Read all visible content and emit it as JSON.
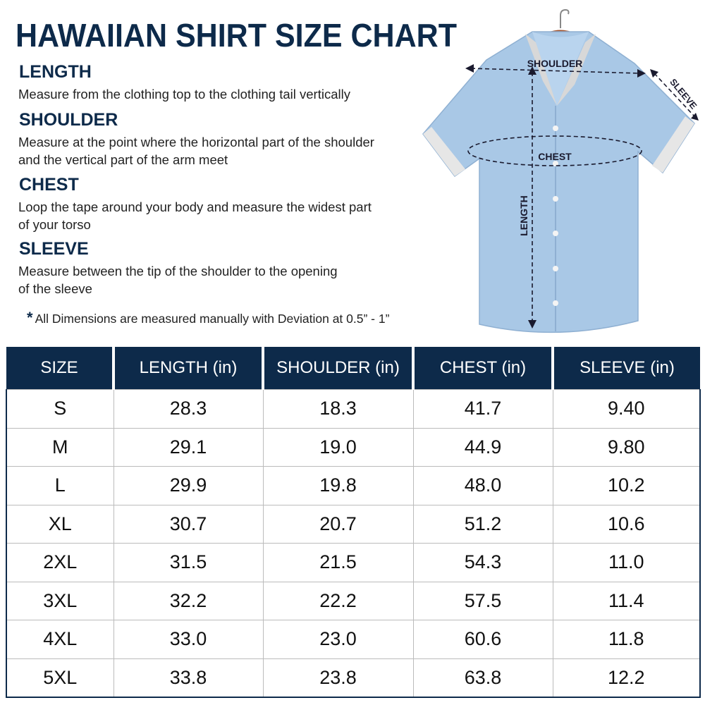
{
  "header": {
    "title": "HAWAIIAN SHIRT SIZE CHART"
  },
  "sections": [
    {
      "heading": "LENGTH",
      "lines": [
        "Measure from the clothing top to the clothing tail vertically"
      ]
    },
    {
      "heading": "SHOULDER",
      "lines": [
        "Measure at the point where the horizontal part of the shoulder",
        "and the vertical part of the arm meet"
      ]
    },
    {
      "heading": "CHEST",
      "lines": [
        "Loop the tape around your body and measure the widest part",
        "of your torso"
      ]
    },
    {
      "heading": "SLEEVE",
      "lines": [
        "Measure between the tip of the shoulder to the opening",
        "of the sleeve"
      ]
    }
  ],
  "note": "All Dimensions are measured manually with Deviation at 0.5” - 1”",
  "diagram": {
    "shoulder": "SHOULDER",
    "sleeve": "SLEEVE",
    "chest": "CHEST",
    "length": "LENGTH"
  },
  "table": {
    "columns": [
      "SIZE",
      "LENGTH (in)",
      "SHOULDER (in)",
      "CHEST (in)",
      "SLEEVE (in)"
    ],
    "rows": [
      [
        "S",
        "28.3",
        "18.3",
        "41.7",
        "9.40"
      ],
      [
        "M",
        "29.1",
        "19.0",
        "44.9",
        "9.80"
      ],
      [
        "L",
        "29.9",
        "19.8",
        "48.0",
        "10.2"
      ],
      [
        "XL",
        "30.7",
        "20.7",
        "51.2",
        "10.6"
      ],
      [
        "2XL",
        "31.5",
        "21.5",
        "54.3",
        "11.0"
      ],
      [
        "3XL",
        "32.2",
        "22.2",
        "57.5",
        "11.4"
      ],
      [
        "4XL",
        "33.0",
        "23.0",
        "60.6",
        "11.8"
      ],
      [
        "5XL",
        "33.8",
        "23.8",
        "63.8",
        "12.2"
      ]
    ]
  }
}
